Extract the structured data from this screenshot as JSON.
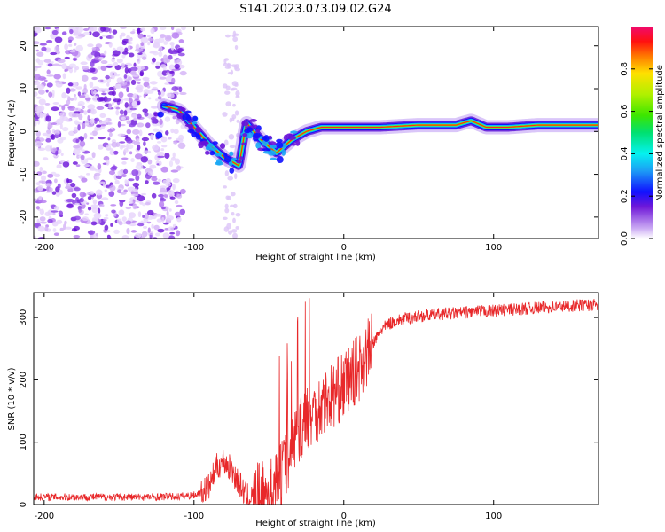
{
  "title": "S141.2023.073.09.02.G24",
  "chart_data": [
    {
      "type": "heatmap",
      "name": "spectrogram",
      "xlabel": "Height of straight line (km)",
      "ylabel": "Frequency (Hz)",
      "xlim": [
        -207,
        170
      ],
      "ylim": [
        -25,
        24.5
      ],
      "xticks": [
        -200,
        -100,
        0,
        100
      ],
      "yticks": [
        -20,
        -10,
        0,
        10,
        20
      ],
      "colorbar": {
        "label": "Normalized spectral amplitude",
        "range": [
          0,
          1
        ],
        "ticks": [
          0.0,
          0.2,
          0.4,
          0.6,
          0.8
        ]
      },
      "ridge": [
        {
          "x": -120,
          "y": 6
        },
        {
          "x": -110,
          "y": 5
        },
        {
          "x": -100,
          "y": 1
        },
        {
          "x": -90,
          "y": -3
        },
        {
          "x": -80,
          "y": -6
        },
        {
          "x": -70,
          "y": -8
        },
        {
          "x": -65,
          "y": 2
        },
        {
          "x": -55,
          "y": -2
        },
        {
          "x": -45,
          "y": -5
        },
        {
          "x": -35,
          "y": -2
        },
        {
          "x": -25,
          "y": 0
        },
        {
          "x": -15,
          "y": 1
        },
        {
          "x": 0,
          "y": 1
        },
        {
          "x": 25,
          "y": 1
        },
        {
          "x": 50,
          "y": 1.5
        },
        {
          "x": 75,
          "y": 1.5
        },
        {
          "x": 85,
          "y": 2.5
        },
        {
          "x": 95,
          "y": 1
        },
        {
          "x": 110,
          "y": 1
        },
        {
          "x": 130,
          "y": 1.5
        },
        {
          "x": 170,
          "y": 1.5
        }
      ]
    },
    {
      "type": "line",
      "name": "snr",
      "xlabel": "Height of straight line (km)",
      "ylabel": "SNR (10 * v/v)",
      "xlim": [
        -207,
        170
      ],
      "ylim": [
        0,
        340
      ],
      "xticks": [
        -200,
        -100,
        0,
        100
      ],
      "yticks": [
        0,
        100,
        200,
        300
      ],
      "color": "#e8282a",
      "x": [
        -207,
        -190,
        -170,
        -150,
        -130,
        -110,
        -100,
        -95,
        -90,
        -85,
        -80,
        -75,
        -70,
        -65,
        -60,
        -55,
        -50,
        -45,
        -40,
        -35,
        -30,
        -25,
        -20,
        -15,
        -10,
        -5,
        0,
        5,
        10,
        15,
        20,
        25,
        30,
        40,
        50,
        60,
        80,
        100,
        120,
        140,
        160,
        170
      ],
      "y": [
        12,
        12,
        12,
        12,
        12,
        13,
        15,
        20,
        28,
        60,
        70,
        55,
        35,
        12,
        12,
        14,
        18,
        30,
        60,
        90,
        120,
        140,
        150,
        160,
        170,
        180,
        190,
        205,
        220,
        240,
        260,
        280,
        290,
        298,
        302,
        305,
        308,
        311,
        314,
        317,
        320,
        320
      ]
    }
  ]
}
